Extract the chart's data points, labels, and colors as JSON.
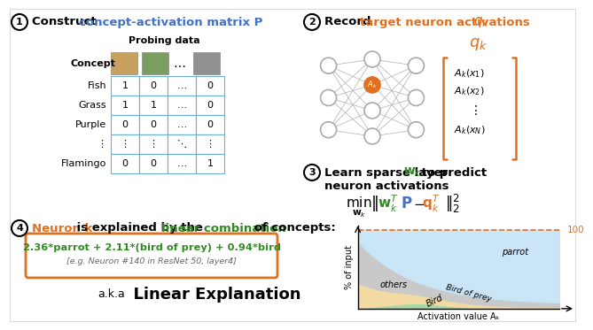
{
  "step1_bold": "Construct ",
  "step1_colored": "concept-activation matrix P",
  "step2_bold": "Record ",
  "step2_colored": "target neuron activations ",
  "step3_text1": "Learn sparse layer ",
  "step3_wk": "w",
  "step3_text2": " to predict",
  "step3_text3": "neuron activations",
  "step4_neuronk": "Neuron k",
  "step4_text2": " is explained by the ",
  "step4_lc": "linear combination",
  "step4_text4": " of concepts:",
  "probing_label": "Probing data",
  "concept_label": "Concept",
  "table_rows": [
    "Fish",
    "Grass",
    "Purple",
    "⋮",
    "Flamingo"
  ],
  "table_col1": [
    "1",
    "1",
    "0",
    "⋮",
    "0"
  ],
  "table_col2": [
    "0",
    "1",
    "0",
    "⋮",
    "0"
  ],
  "table_col3": [
    "…",
    "…",
    "…",
    "⋱",
    "…"
  ],
  "table_col4": [
    "0",
    "0",
    "0",
    "⋮",
    "1"
  ],
  "formula_main": "2.36*parrot + 2.11*(bird of prey) + 0.94*bird",
  "formula_italic": "[e.g. Neuron #140 in ResNet 50, layer4]",
  "aka_prefix": "a.k.a",
  "aka_main": "  Linear Explanation",
  "chart_ylabel": "% of input",
  "chart_xlabel": "Activation value Aₖ",
  "chart_100": "100",
  "nn_layers": [
    3,
    4,
    3
  ],
  "colors": {
    "blue_text": "#4472C4",
    "orange_text": "#E07020",
    "green_text": "#4CAF50",
    "dark_green": "#2E8B20",
    "table_border": "#6BAED6",
    "chart_blue": "#C5E3F5",
    "chart_green": "#A8D8A8",
    "chart_yellow": "#F5DCA0",
    "chart_gray": "#C0C0C0",
    "node_gray": "#AAAAAA",
    "node_orange": "#E07020"
  }
}
